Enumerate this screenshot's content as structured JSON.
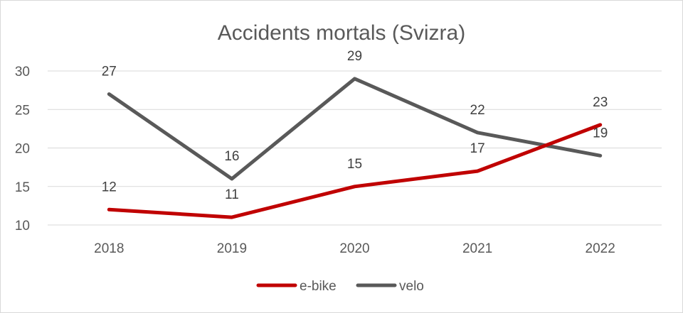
{
  "chart_data": {
    "type": "line",
    "title": "Accidents mortals (Svizra)",
    "xlabel": "",
    "ylabel": "",
    "categories": [
      "2018",
      "2019",
      "2020",
      "2021",
      "2022"
    ],
    "ylim": [
      10,
      30
    ],
    "yticks": [
      10,
      15,
      20,
      25,
      30
    ],
    "grid": true,
    "legend_position": "bottom",
    "series": [
      {
        "name": "e-bike",
        "color": "#c00000",
        "values": [
          12,
          11,
          15,
          17,
          23
        ]
      },
      {
        "name": "velo",
        "color": "#595959",
        "values": [
          27,
          16,
          29,
          22,
          19
        ]
      }
    ]
  }
}
